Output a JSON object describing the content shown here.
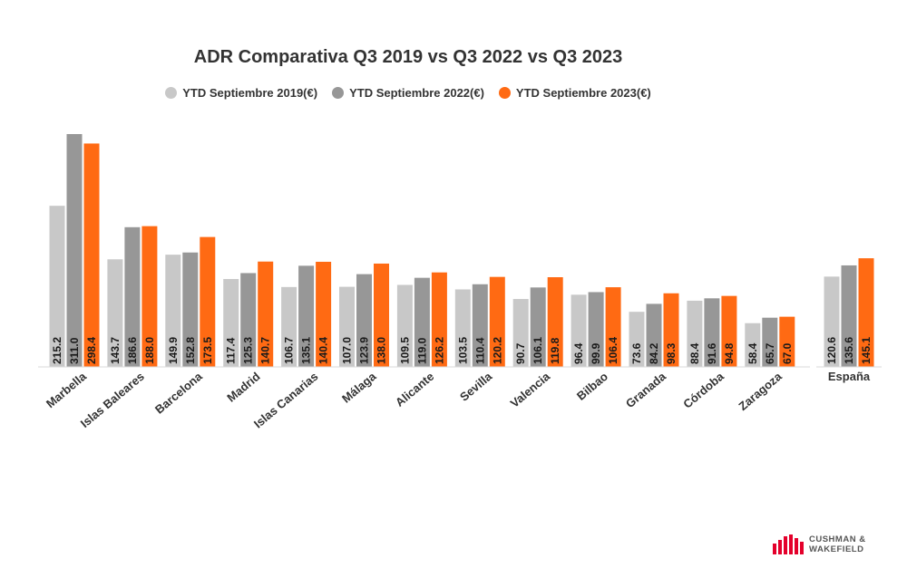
{
  "chart_data": [
    {
      "type": "bar",
      "title": "ADR Comparativa Q3 2019 vs Q3 2022 vs Q3 2023",
      "categories": [
        "Marbella",
        "Islas Baleares",
        "Barcelona",
        "Madrid",
        "Islas Canarias",
        "Málaga",
        "Alicante",
        "Sevilla",
        "Valencia",
        "Bilbao",
        "Granada",
        "Córdoba",
        "Zaragoza"
      ],
      "series": [
        {
          "name": "YTD Septiembre 2019(€)",
          "color": "#c8c8c8",
          "values": [
            215.2,
            143.7,
            149.9,
            117.4,
            106.7,
            107.0,
            109.5,
            103.5,
            90.7,
            96.4,
            73.6,
            88.4,
            58.4
          ]
        },
        {
          "name": "YTD Septiembre 2022(€)",
          "color": "#979797",
          "values": [
            311.0,
            186.6,
            152.8,
            125.3,
            135.1,
            123.9,
            119.0,
            110.4,
            106.1,
            99.9,
            84.2,
            91.6,
            65.7
          ]
        },
        {
          "name": "YTD Septiembre 2023(€)",
          "color": "#ff6a13",
          "values": [
            298.4,
            188.0,
            173.5,
            140.7,
            140.4,
            138.0,
            126.2,
            120.2,
            119.8,
            106.4,
            98.3,
            94.8,
            67.0
          ]
        }
      ],
      "ylim": [
        0,
        311.0
      ],
      "grid": false,
      "legend": "top-center"
    },
    {
      "type": "bar",
      "categories": [
        "España"
      ],
      "series": [
        {
          "name": "YTD Septiembre 2019(€)",
          "color": "#c8c8c8",
          "values": [
            120.6
          ]
        },
        {
          "name": "YTD Septiembre 2022(€)",
          "color": "#979797",
          "values": [
            135.6
          ]
        },
        {
          "name": "YTD Septiembre 2023(€)",
          "color": "#ff6a13",
          "values": [
            145.1
          ]
        }
      ]
    }
  ],
  "logo": {
    "line1": "CUSHMAN &",
    "line2": "WAKEFIELD",
    "color": "#e4002b"
  }
}
